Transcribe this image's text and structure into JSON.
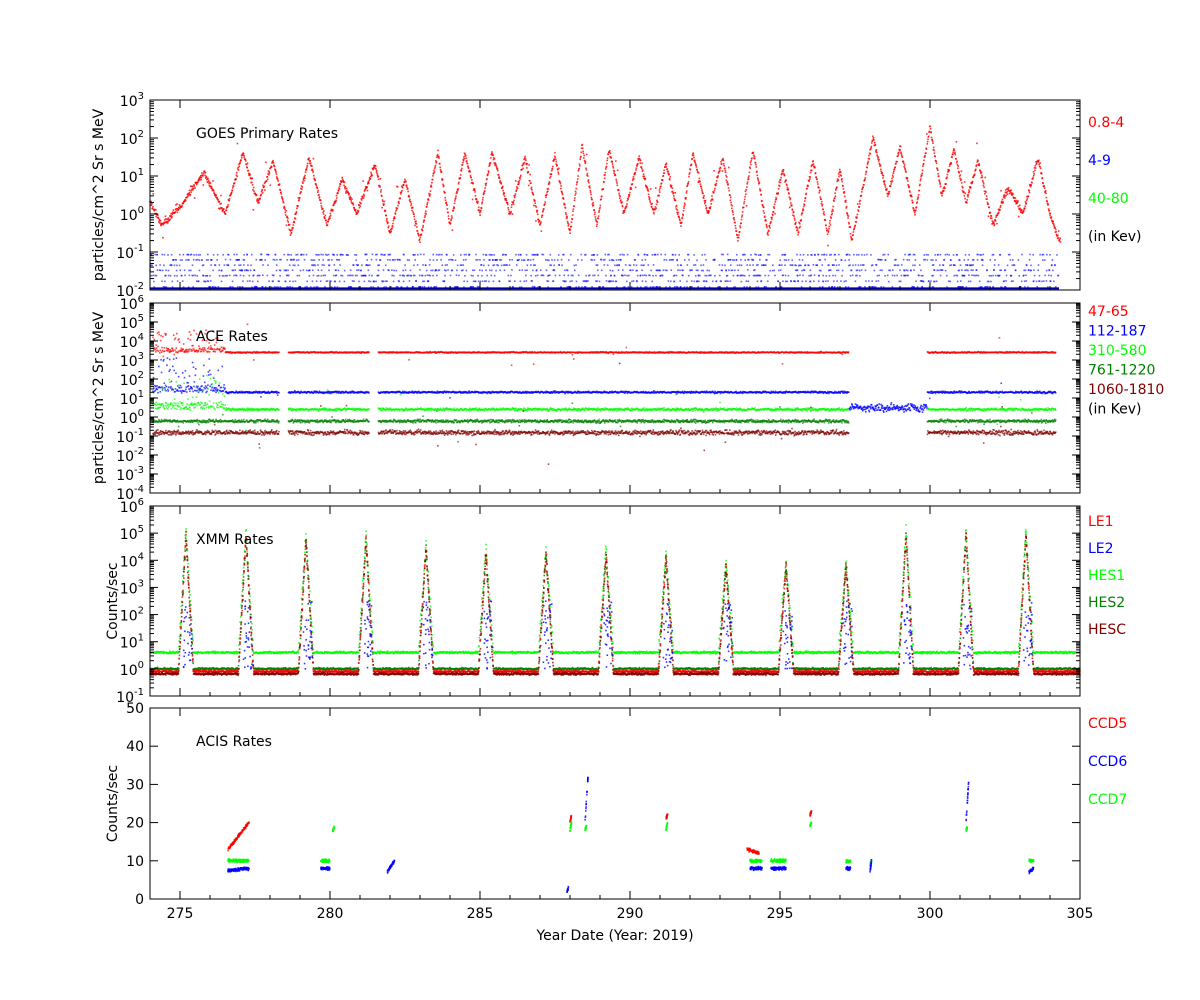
{
  "figure": {
    "xlabel": "Year Date (Year: 2019)",
    "xlim": [
      274,
      305
    ],
    "xticks": [
      275,
      280,
      285,
      290,
      295,
      300,
      305
    ]
  },
  "chart_data": [
    {
      "type": "scatter",
      "title": "GOES Primary Rates",
      "ylabel": "particles/cm^2 Sr s MeV",
      "yscale": "log",
      "ylim_exp": [
        -2,
        3
      ],
      "yticks_exp": [
        -2,
        -1,
        0,
        1,
        2,
        3
      ],
      "legend": [
        {
          "label": "0.8-4",
          "color": "#ff0000"
        },
        {
          "label": "4-9",
          "color": "#0000ff"
        },
        {
          "label": "40-80",
          "color": "#00ff00"
        },
        {
          "label": "(in Kev)",
          "color": "#000000"
        }
      ],
      "series": [
        {
          "name": "0.8-4",
          "color": "#ff0000",
          "x": [
            274.0,
            274.4,
            275.0,
            275.8,
            276.5,
            277.1,
            277.6,
            278.1,
            278.7,
            279.3,
            279.9,
            280.4,
            280.9,
            281.5,
            282.0,
            282.5,
            283.0,
            283.6,
            284.0,
            284.5,
            285.0,
            285.4,
            286.0,
            286.5,
            287.0,
            287.5,
            288.0,
            288.4,
            288.9,
            289.3,
            289.8,
            290.3,
            290.8,
            291.2,
            291.7,
            292.1,
            292.6,
            293.1,
            293.6,
            294.1,
            294.6,
            295.1,
            295.6,
            296.1,
            296.6,
            297.0,
            297.4,
            298.1,
            298.6,
            299.0,
            299.5,
            300.0,
            300.4,
            300.8,
            301.2,
            301.6,
            302.1,
            302.6,
            303.1,
            303.6,
            304.0,
            304.3
          ],
          "y": [
            2,
            0.5,
            1.5,
            12,
            1,
            40,
            2,
            25,
            0.3,
            30,
            0.5,
            8,
            1,
            20,
            0.3,
            8,
            0.2,
            40,
            0.5,
            40,
            1,
            40,
            1,
            30,
            0.5,
            35,
            0.3,
            60,
            0.5,
            50,
            1,
            30,
            1,
            20,
            0.5,
            40,
            1,
            30,
            0.2,
            50,
            0.3,
            15,
            0.3,
            25,
            0.3,
            15,
            0.2,
            100,
            3,
            60,
            1,
            200,
            3,
            50,
            2,
            25,
            0.5,
            5,
            1,
            30,
            1,
            0.2
          ]
        },
        {
          "name": "4-9",
          "color": "#0000ff",
          "levels": [
            0.012,
            0.017,
            0.024,
            0.033,
            0.045,
            0.062,
            0.085
          ],
          "baseline": 0.011
        }
      ]
    },
    {
      "type": "scatter",
      "title": "ACE Rates",
      "ylabel": "particles/cm^2 Sr s MeV",
      "yscale": "log",
      "ylim_exp": [
        -4,
        6
      ],
      "yticks_exp": [
        -4,
        -3,
        -2,
        -1,
        0,
        1,
        2,
        3,
        4,
        5,
        6
      ],
      "legend": [
        {
          "label": "47-65",
          "color": "#ff0000"
        },
        {
          "label": "112-187",
          "color": "#0000ff"
        },
        {
          "label": "310-580",
          "color": "#00ff00"
        },
        {
          "label": "761-1220",
          "color": "#007f00"
        },
        {
          "label": "1060-1810",
          "color": "#7f0000"
        },
        {
          "label": "(in Kev)",
          "color": "#000000"
        }
      ],
      "series": [
        {
          "name": "47-65",
          "color": "#ff0000",
          "level": 2500,
          "spread": 0.05
        },
        {
          "name": "112-187",
          "color": "#0000ff",
          "level": 20,
          "spread": 0.08
        },
        {
          "name": "310-580",
          "color": "#00ff00",
          "level": 2.5,
          "spread": 0.1
        },
        {
          "name": "761-1220",
          "color": "#007f00",
          "level": 0.6,
          "spread": 0.12
        },
        {
          "name": "1060-1810",
          "color": "#7f0000",
          "level": 0.15,
          "spread": 0.18
        }
      ],
      "gaps": [
        [
          278.3,
          278.6
        ],
        [
          281.3,
          281.6
        ],
        [
          297.3,
          299.9
        ]
      ],
      "end": 304.2,
      "disturbed": {
        "x": [
          297.3,
          299.9
        ],
        "value": 3
      }
    },
    {
      "type": "scatter",
      "title": "XMM Rates",
      "ylabel": "Counts/sec",
      "yscale": "log",
      "ylim_exp": [
        -1,
        6
      ],
      "yticks_exp": [
        -1,
        0,
        1,
        2,
        3,
        4,
        5,
        6
      ],
      "legend": [
        {
          "label": "LE1",
          "color": "#ff0000"
        },
        {
          "label": "LE2",
          "color": "#0000ff"
        },
        {
          "label": "HES1",
          "color": "#00ff00"
        },
        {
          "label": "HES2",
          "color": "#007f00"
        },
        {
          "label": "HESC",
          "color": "#7f0000"
        }
      ],
      "series": [
        {
          "name": "HES1",
          "color": "#00ff00",
          "level": 4
        },
        {
          "name": "HES2",
          "color": "#007f00",
          "level": 1.0
        },
        {
          "name": "LE1",
          "color": "#ff0000",
          "level": 0.8
        },
        {
          "name": "HESC",
          "color": "#7f0000",
          "level": 0.65
        }
      ],
      "spikes": {
        "x": [
          275.2,
          277.2,
          279.2,
          281.2,
          283.2,
          285.2,
          287.2,
          289.2,
          291.2,
          293.2,
          295.2,
          297.2,
          299.2,
          301.2,
          303.2
        ],
        "peak": [
          150000,
          150000,
          100000,
          100000,
          50000,
          30000,
          30000,
          30000,
          20000,
          10000,
          10000,
          10000,
          150000,
          150000,
          150000
        ]
      }
    },
    {
      "type": "scatter",
      "title": "ACIS Rates",
      "ylabel": "Counts/sec",
      "yscale": "linear",
      "ylim": [
        0,
        50
      ],
      "yticks": [
        0,
        10,
        20,
        30,
        40,
        50
      ],
      "legend": [
        {
          "label": "CCD5",
          "color": "#ff0000"
        },
        {
          "label": "CCD6",
          "color": "#0000ff"
        },
        {
          "label": "CCD7",
          "color": "#00ff00"
        }
      ],
      "series": [
        {
          "name": "CCD5",
          "color": "#ff0000",
          "segments": [
            [
              276.6,
              277.3,
              13,
              20
            ],
            [
              288.0,
              288.05,
              20,
              22
            ],
            [
              291.2,
              291.25,
              21,
              22
            ],
            [
              293.9,
              294.3,
              13,
              12
            ],
            [
              296.0,
              296.05,
              22,
              23
            ]
          ]
        },
        {
          "name": "CCD7",
          "color": "#00ff00",
          "segments": [
            [
              276.6,
              277.3,
              10,
              10
            ],
            [
              279.7,
              280.0,
              10,
              10
            ],
            [
              280.1,
              280.15,
              18,
              19
            ],
            [
              288.0,
              288.05,
              18,
              20
            ],
            [
              288.5,
              288.55,
              18,
              19
            ],
            [
              291.2,
              291.25,
              18,
              20
            ],
            [
              294.0,
              294.4,
              10,
              10
            ],
            [
              294.7,
              295.2,
              10,
              10
            ],
            [
              296.0,
              296.05,
              19,
              20
            ],
            [
              297.2,
              297.35,
              10,
              10
            ],
            [
              298.0,
              298.05,
              9,
              10
            ],
            [
              301.2,
              301.25,
              18,
              19
            ],
            [
              303.3,
              303.45,
              10,
              10
            ]
          ]
        },
        {
          "name": "CCD6",
          "color": "#0000ff",
          "segments": [
            [
              276.6,
              277.3,
              7.5,
              8
            ],
            [
              279.7,
              280.0,
              8,
              8
            ],
            [
              281.9,
              282.15,
              7,
              10
            ],
            [
              287.9,
              287.95,
              2,
              3
            ],
            [
              288.5,
              288.6,
              20,
              32
            ],
            [
              294.0,
              294.4,
              8,
              8
            ],
            [
              294.7,
              295.2,
              8,
              8
            ],
            [
              297.2,
              297.35,
              8,
              8
            ],
            [
              298.0,
              298.05,
              7,
              10
            ],
            [
              301.2,
              301.3,
              20,
              32
            ],
            [
              303.3,
              303.45,
              7,
              8
            ]
          ]
        }
      ]
    }
  ]
}
